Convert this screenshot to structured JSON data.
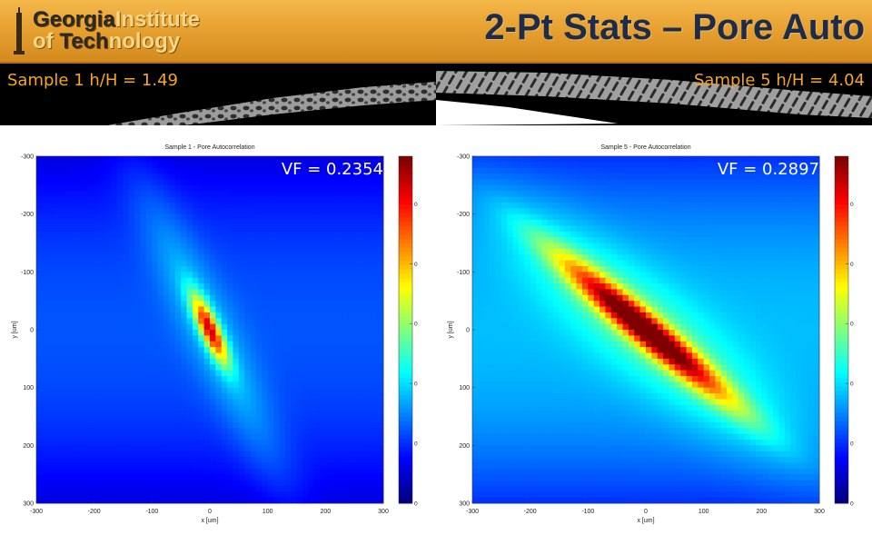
{
  "header": {
    "logo_line1_bold": "Georgia",
    "logo_line1_light": "Institute",
    "logo_line2_light1": "of ",
    "logo_line2_bold": "Tech",
    "logo_line2_light2": "nology",
    "title": "2-Pt Stats – Pore Auto"
  },
  "strips": [
    {
      "label": "Sample 1 h/H = 1.49"
    },
    {
      "label": "Sample 5 h/H = 4.04"
    }
  ],
  "colors": {
    "header_orange": "#e7a232",
    "title_navy": "#1d2c4a",
    "strip_label": "#f5a623"
  },
  "chart_data": [
    {
      "type": "heatmap",
      "title": "Sample 1 - Pore Autocorrelation",
      "xlabel": "x [um]",
      "ylabel": "y [um]",
      "xlim": [
        -300,
        300
      ],
      "ylim": [
        -300,
        300
      ],
      "y_reversed": true,
      "xticks": [
        -300,
        -200,
        -100,
        0,
        100,
        200,
        300
      ],
      "yticks": [
        -300,
        -200,
        -100,
        0,
        100,
        200,
        300
      ],
      "colorbar": {
        "colormap": "jet",
        "range": [
          0,
          0.2897
        ],
        "ticks": [
          0,
          0.05,
          0.1,
          0.15,
          0.2,
          0.25
        ]
      },
      "annotation": "VF = 0.2354",
      "peak": {
        "x": 0,
        "y": 0,
        "value": 0.2354
      },
      "background_level": 0.06
    },
    {
      "type": "heatmap",
      "title": "Sample 5 - Pore Autocorrelation",
      "xlabel": "x [um]",
      "ylabel": "y [um]",
      "xlim": [
        -300,
        300
      ],
      "ylim": [
        -300,
        300
      ],
      "y_reversed": true,
      "xticks": [
        -300,
        -200,
        -100,
        0,
        100,
        200,
        300
      ],
      "yticks": [
        -300,
        -200,
        -100,
        0,
        100,
        200,
        300
      ],
      "colorbar": {
        "colormap": "jet",
        "range": [
          0,
          0.2897
        ],
        "ticks": [
          0,
          0.05,
          0.1,
          0.15,
          0.2,
          0.25
        ]
      },
      "annotation": "VF = 0.2897",
      "peak": {
        "x": 0,
        "y": 0,
        "value": 0.2897
      },
      "background_level": 0.09
    }
  ]
}
